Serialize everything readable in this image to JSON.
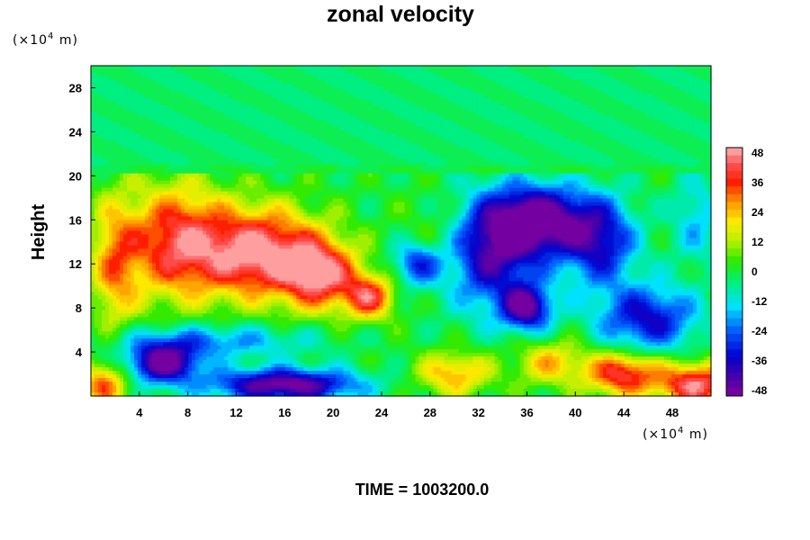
{
  "chart_data": {
    "type": "heatmap",
    "title": "zonal velocity",
    "ylabel": "Height",
    "xlabel": "",
    "y_unit": {
      "prefix": "(×10",
      "exp": "4",
      "suffix": " m)"
    },
    "x_unit": {
      "prefix": "(×10",
      "exp": "4",
      "suffix": " m)"
    },
    "xlim": [
      0,
      51.2
    ],
    "ylim": [
      0,
      30
    ],
    "x_ticks": [
      "4",
      "8",
      "12",
      "16",
      "20",
      "24",
      "28",
      "32",
      "36",
      "40",
      "44",
      "48"
    ],
    "y_ticks": [
      "4",
      "8",
      "12",
      "16",
      "20",
      "24",
      "28"
    ],
    "grid": false,
    "colorbar": {
      "placement": "right",
      "range": [
        -48,
        48
      ],
      "levels": 32,
      "tick_labels": [
        "48",
        "36",
        "24",
        "12",
        "0",
        "-12",
        "-24",
        "-36",
        "-48"
      ]
    },
    "features": [
      {
        "x": 14,
        "y": 13,
        "value": 48,
        "sx": 5,
        "sy": 4
      },
      {
        "x": 7,
        "y": 14,
        "value": 38,
        "sx": 4,
        "sy": 5
      },
      {
        "x": 19,
        "y": 11,
        "value": 40,
        "sx": 3,
        "sy": 3
      },
      {
        "x": 23,
        "y": 9,
        "value": 36,
        "sx": 2,
        "sy": 2
      },
      {
        "x": 2,
        "y": 12,
        "value": 25,
        "sx": 2,
        "sy": 6
      },
      {
        "x": 37,
        "y": 16,
        "value": -48,
        "sx": 4,
        "sy": 3
      },
      {
        "x": 33,
        "y": 13,
        "value": -40,
        "sx": 4,
        "sy": 5
      },
      {
        "x": 42,
        "y": 14,
        "value": -34,
        "sx": 3,
        "sy": 4
      },
      {
        "x": 46,
        "y": 7,
        "value": -34,
        "sx": 4,
        "sy": 3
      },
      {
        "x": 27,
        "y": 12,
        "value": -30,
        "sx": 2,
        "sy": 2
      },
      {
        "x": 36,
        "y": 8,
        "value": -42,
        "sx": 2,
        "sy": 2
      },
      {
        "x": 6,
        "y": 3,
        "value": -48,
        "sx": 3,
        "sy": 1.8
      },
      {
        "x": 16,
        "y": 1,
        "value": -48,
        "sx": 6,
        "sy": 1.5
      },
      {
        "x": 10,
        "y": 5,
        "value": -20,
        "sx": 8,
        "sy": 1.5
      },
      {
        "x": 44,
        "y": 2,
        "value": 40,
        "sx": 3,
        "sy": 2
      },
      {
        "x": 50,
        "y": 1,
        "value": 44,
        "sx": 3,
        "sy": 2
      },
      {
        "x": 30,
        "y": 2,
        "value": 25,
        "sx": 3,
        "sy": 2
      },
      {
        "x": 38,
        "y": 3,
        "value": 22,
        "sx": 3,
        "sy": 2
      },
      {
        "x": 1,
        "y": 1,
        "value": 30,
        "sx": 2,
        "sy": 2
      },
      {
        "x": 29,
        "y": 14,
        "value": 12,
        "sx": 3,
        "sy": 4
      },
      {
        "x": 50,
        "y": 16,
        "value": -15,
        "sx": 2,
        "sy": 4
      }
    ]
  },
  "footer": {
    "time_label": "TIME = 1003200.0"
  }
}
